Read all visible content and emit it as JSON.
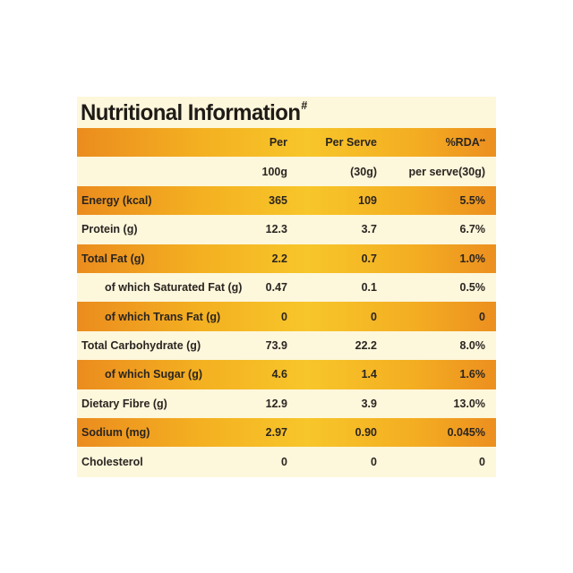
{
  "title": "Nutritional Information",
  "title_mark": "#",
  "header": {
    "row1": {
      "col1": "Per",
      "col2": "Per Serve",
      "col3": "%RDA",
      "col3_mark": "**"
    },
    "row2": {
      "col1": "100g",
      "col2": "(30g)",
      "col3": "per serve(30g)"
    }
  },
  "rows": [
    {
      "label": "Energy (kcal)",
      "per100g": "365",
      "perServe": "109",
      "rda": "5.5%"
    },
    {
      "label": "Protein (g)",
      "per100g": "12.3",
      "perServe": "3.7",
      "rda": "6.7%"
    },
    {
      "label": "Total Fat (g)",
      "per100g": "2.2",
      "perServe": "0.7",
      "rda": "1.0%"
    },
    {
      "label": "of which Saturated Fat (g)",
      "per100g": "0.47",
      "perServe": "0.1",
      "rda": "0.5%"
    },
    {
      "label": "of which Trans Fat (g)",
      "per100g": "0",
      "perServe": "0",
      "rda": "0"
    },
    {
      "label": "Total Carbohydrate (g)",
      "per100g": "73.9",
      "perServe": "22.2",
      "rda": "8.0%"
    },
    {
      "label": "of which Sugar (g)",
      "per100g": "4.6",
      "perServe": "1.4",
      "rda": "1.6%"
    },
    {
      "label": "Dietary Fibre (g)",
      "per100g": "12.9",
      "perServe": "3.9",
      "rda": "13.0%"
    },
    {
      "label": "Sodium (mg)",
      "per100g": "2.97",
      "perServe": "0.90",
      "rda": "0.045%"
    },
    {
      "label": "Cholesterol",
      "per100g": "0",
      "perServe": "0",
      "rda": "0"
    }
  ],
  "colors": {
    "panel_bg": "#fdf7dc",
    "band_edge": "#eb8c1e",
    "band_center": "#f7c62a",
    "text": "#2a2520"
  }
}
